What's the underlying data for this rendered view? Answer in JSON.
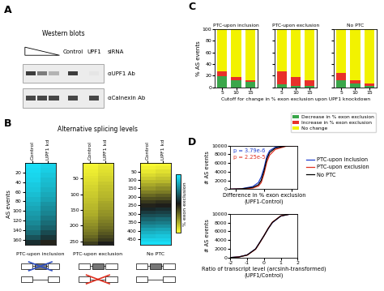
{
  "panel_labels": [
    "A",
    "B",
    "C",
    "D"
  ],
  "western_blot": {
    "header": "Western blots",
    "sirna_label": "siRNA",
    "lanes": [
      "Control",
      "UPF1"
    ],
    "antibodies": [
      "αUPF1 Ab",
      "αCalnexin Ab"
    ]
  },
  "heatmap_title": "Alternative splicing levels",
  "colorbar": {
    "label": "% exon exclusion",
    "range": [
      0,
      100
    ],
    "ticks": []
  },
  "shared_labels": {
    "C_x": "Cutoff for change in % exon exclusion upon UPF1 knockdown"
  },
  "chart_data": [
    {
      "type": "heatmap",
      "title": "PTC-upon inclusion",
      "categories": [
        "Control",
        "UPF1 kd"
      ],
      "ylabel": "AS events",
      "ylim": [
        170,
        0
      ],
      "yticks": [
        20,
        40,
        60,
        80,
        100,
        120,
        140,
        160
      ],
      "cells": [
        [
          98,
          95
        ],
        [
          97,
          94
        ],
        [
          96,
          92
        ],
        [
          95,
          90
        ],
        [
          93,
          89
        ],
        [
          92,
          87
        ],
        [
          90,
          85
        ],
        [
          88,
          83
        ],
        [
          86,
          80
        ],
        [
          84,
          78
        ],
        [
          82,
          76
        ],
        [
          80,
          73
        ],
        [
          77,
          70
        ],
        [
          74,
          67
        ],
        [
          70,
          62
        ],
        [
          64,
          57
        ],
        [
          55,
          48
        ]
      ]
    },
    {
      "type": "heatmap",
      "title": "PTC-upon exclusion",
      "categories": [
        "Control",
        "UPF1 kd"
      ],
      "ylim": [
        260,
        0
      ],
      "yticks": [
        50,
        100,
        150,
        200,
        250
      ],
      "cells": [
        [
          2,
          5
        ],
        [
          3,
          6
        ],
        [
          4,
          7
        ],
        [
          5,
          8
        ],
        [
          6,
          9
        ],
        [
          7,
          10
        ],
        [
          8,
          12
        ],
        [
          9,
          13
        ],
        [
          10,
          14
        ],
        [
          11,
          15
        ],
        [
          12,
          16
        ],
        [
          13,
          17
        ],
        [
          14,
          19
        ],
        [
          15,
          20
        ],
        [
          16,
          21
        ],
        [
          17,
          23
        ],
        [
          18,
          24
        ],
        [
          20,
          26
        ],
        [
          22,
          28
        ],
        [
          24,
          30
        ],
        [
          26,
          32
        ],
        [
          28,
          34
        ],
        [
          30,
          37
        ],
        [
          33,
          40
        ],
        [
          36,
          43
        ],
        [
          42,
          49
        ]
      ]
    },
    {
      "type": "heatmap",
      "title": "No PTC",
      "categories": [
        "Control",
        "UPF1 kd"
      ],
      "ylim": [
        480,
        0
      ],
      "yticks": [
        50,
        100,
        150,
        200,
        250,
        300,
        350,
        400,
        450
      ],
      "cells": [
        [
          1,
          2
        ],
        [
          3,
          4
        ],
        [
          5,
          7
        ],
        [
          8,
          10
        ],
        [
          11,
          13
        ],
        [
          15,
          16
        ],
        [
          19,
          21
        ],
        [
          23,
          25
        ],
        [
          28,
          29
        ],
        [
          33,
          35
        ],
        [
          38,
          39
        ],
        [
          43,
          45
        ],
        [
          48,
          49
        ],
        [
          53,
          55
        ],
        [
          58,
          59
        ],
        [
          63,
          64
        ],
        [
          68,
          70
        ],
        [
          73,
          74
        ],
        [
          78,
          79
        ],
        [
          83,
          84
        ],
        [
          87,
          88
        ],
        [
          91,
          92
        ],
        [
          95,
          95
        ],
        [
          98,
          98
        ]
      ]
    },
    {
      "type": "bar",
      "stacked": true,
      "title": "PTC-upon inclusion",
      "categories": [
        "5",
        "10",
        "15"
      ],
      "ylabel": "% AS events",
      "ylim": [
        0,
        100
      ],
      "yticks": [
        0,
        20,
        40,
        60,
        80,
        100
      ],
      "series": [
        {
          "name": "Decrease in % exon exclusion",
          "color": "#3aa64a",
          "values": [
            19,
            12,
            9
          ]
        },
        {
          "name": "Increase in % exon exclusion",
          "color": "#e8302a",
          "values": [
            8,
            5,
            3
          ]
        },
        {
          "name": "No change",
          "color": "#f2f200",
          "values": [
            73,
            83,
            88
          ]
        }
      ]
    },
    {
      "type": "bar",
      "stacked": true,
      "title": "PTC-upon exclusion",
      "categories": [
        "5",
        "10",
        "15"
      ],
      "tick_labels": "x",
      "ylim": [
        0,
        100
      ],
      "yticks": [
        0,
        20,
        40,
        60,
        80,
        100
      ],
      "series": [
        {
          "name": "Decrease in % exon exclusion",
          "color": "#3aa64a",
          "values": [
            5,
            3,
            2
          ]
        },
        {
          "name": "Increase in % exon exclusion",
          "color": "#e8302a",
          "values": [
            22,
            15,
            10
          ]
        },
        {
          "name": "No change",
          "color": "#f2f200",
          "values": [
            73,
            82,
            88
          ]
        }
      ]
    },
    {
      "type": "bar",
      "stacked": true,
      "title": "No PTC",
      "categories": [
        "5",
        "10",
        "15"
      ],
      "tick_labels": "x",
      "legend": "upper right",
      "ylim": [
        0,
        100
      ],
      "yticks": [
        0,
        20,
        40,
        60,
        80,
        100
      ],
      "series": [
        {
          "name": "Decrease in % exon exclusion",
          "color": "#3aa64a",
          "values": [
            12,
            6,
            3
          ]
        },
        {
          "name": "Increase in % exon exclusion",
          "color": "#e8302a",
          "values": [
            12,
            6,
            4
          ]
        },
        {
          "name": "No change",
          "color": "#f2f200",
          "values": [
            76,
            88,
            93
          ]
        }
      ]
    },
    {
      "type": "line",
      "xlabel": "Difference in % exon exclusion\n(UPF1-Control)",
      "ylabel": "# AS events",
      "tick_labels": "y",
      "legend": "center left",
      "x": [
        -60,
        -40,
        -20,
        -10,
        -5,
        0,
        5,
        10,
        20,
        40,
        60
      ],
      "xlim": [
        -60,
        60
      ],
      "xticks": [
        -50,
        0,
        50
      ],
      "ylim": [
        0,
        10000
      ],
      "yticks": [
        0,
        2000,
        4000,
        6000,
        8000,
        10000
      ],
      "annotations": [
        {
          "text": "p = 3.79e-6",
          "color": "#1f3fd0"
        },
        {
          "text": "p = 2.25e-5",
          "color": "#e03020"
        }
      ],
      "series": [
        {
          "name": "PTC-upon inclusion",
          "color": "#1f3fd0",
          "values": [
            0,
            100,
            600,
            1500,
            2800,
            4800,
            7500,
            8800,
            9600,
            9950,
            10000
          ]
        },
        {
          "name": "PTC-upon exclusion",
          "color": "#e03020",
          "values": [
            0,
            50,
            250,
            700,
            1500,
            3500,
            6200,
            7800,
            9100,
            9850,
            10000
          ]
        },
        {
          "name": "No PTC",
          "color": "#000000",
          "values": [
            0,
            80,
            400,
            1000,
            2000,
            4200,
            6900,
            8400,
            9400,
            9900,
            10000
          ]
        }
      ]
    },
    {
      "type": "line",
      "xlabel": "Ratio of transcript level (arcsinh-transformed)\n(UPF1/Control)",
      "ylabel": "# AS events",
      "x": [
        -2,
        -1.5,
        -1,
        -0.5,
        -0.25,
        0,
        0.25,
        0.5,
        1,
        1.5,
        2
      ],
      "xlim": [
        -2,
        2
      ],
      "xticks": [
        -2,
        -1,
        0,
        1,
        2
      ],
      "ylim": [
        0,
        10000
      ],
      "yticks": [
        0,
        2000,
        4000,
        6000,
        8000,
        10000
      ],
      "series": [
        {
          "name": "PTC-upon inclusion",
          "color": "#1f3fd0",
          "values": [
            0,
            150,
            600,
            2000,
            3500,
            5000,
            6600,
            8000,
            9500,
            9900,
            10000
          ]
        },
        {
          "name": "PTC-upon exclusion",
          "color": "#e03020",
          "values": [
            0,
            120,
            550,
            1900,
            3400,
            5000,
            6700,
            8100,
            9550,
            9920,
            10000
          ]
        },
        {
          "name": "No PTC",
          "color": "#000000",
          "values": [
            0,
            130,
            580,
            1950,
            3450,
            5000,
            6650,
            8050,
            9520,
            9910,
            10000
          ]
        }
      ]
    }
  ]
}
